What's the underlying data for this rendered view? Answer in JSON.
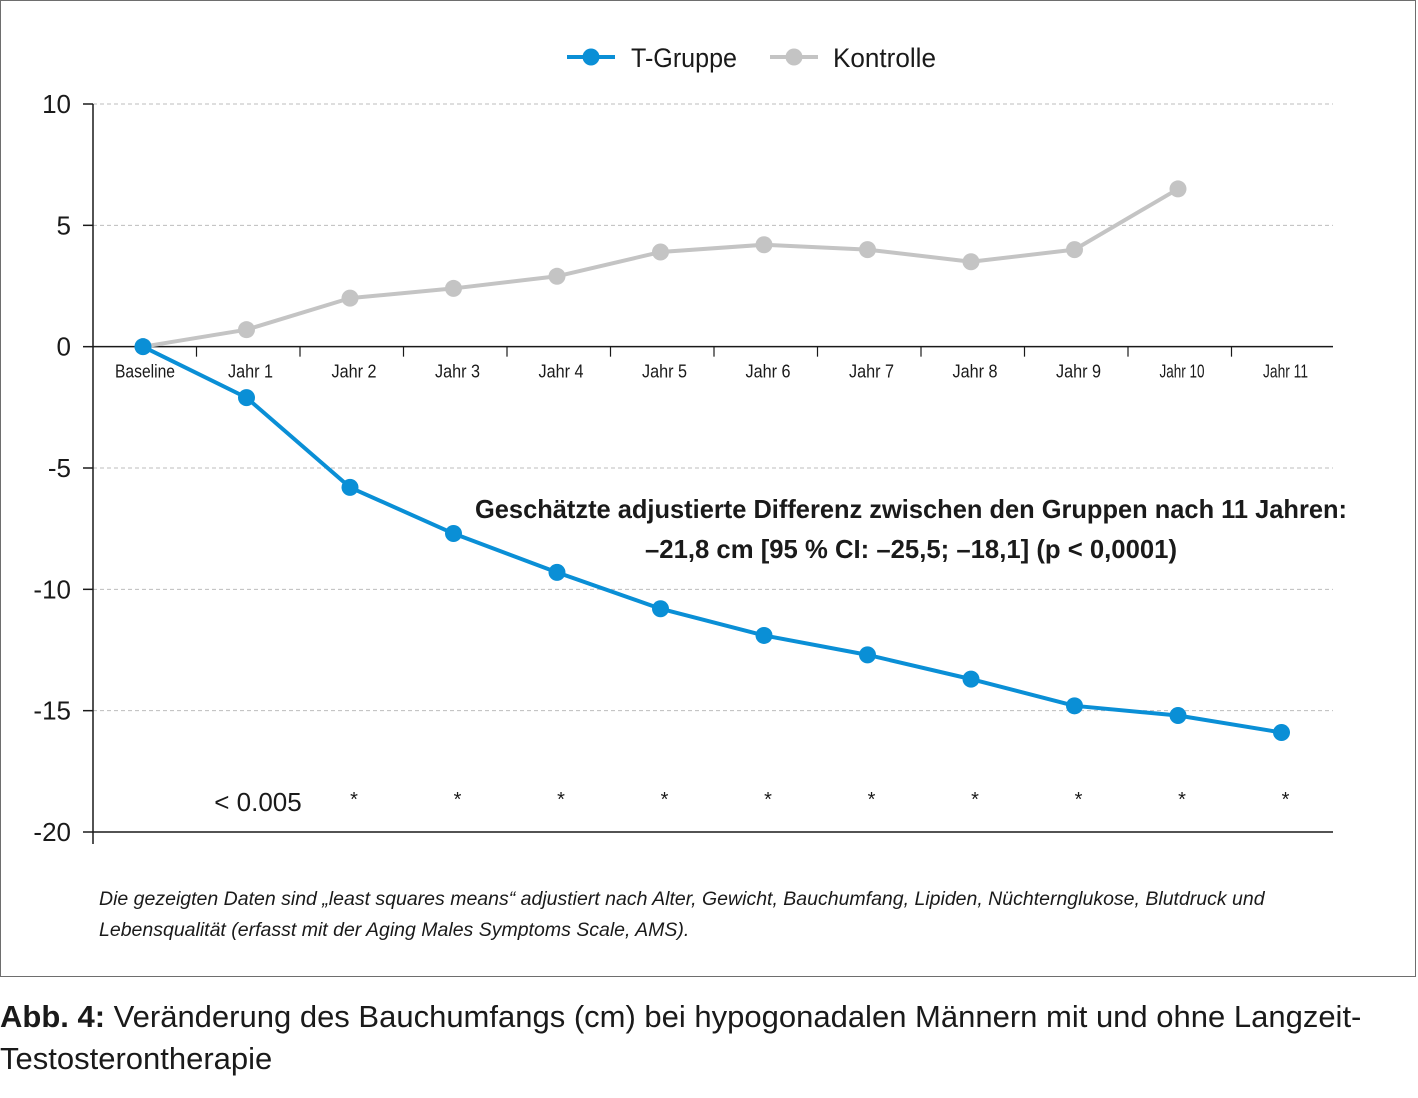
{
  "chart_data": {
    "type": "line",
    "categories": [
      "Baseline",
      "Jahr 1",
      "Jahr 2",
      "Jahr 3",
      "Jahr 4",
      "Jahr 5",
      "Jahr 6",
      "Jahr 7",
      "Jahr 8",
      "Jahr 9",
      "Jahr 10",
      "Jahr 11"
    ],
    "series": [
      {
        "name": "T-Gruppe",
        "color": "#0a8fd6",
        "values": [
          0,
          -2.1,
          -5.8,
          -7.7,
          -9.3,
          -10.8,
          -11.9,
          -12.7,
          -13.7,
          -14.8,
          -15.2,
          -15.9
        ]
      },
      {
        "name": "Kontrolle",
        "color": "#c4c4c4",
        "values": [
          0,
          0.7,
          2.0,
          2.4,
          2.9,
          3.9,
          4.2,
          4.0,
          3.5,
          4.0,
          6.5,
          null
        ]
      }
    ],
    "ylim": [
      -20,
      10
    ],
    "yticks": [
      "10",
      "5",
      "0",
      "-5",
      "-10",
      "-15",
      "-20"
    ],
    "grid": "horizontal dashed",
    "legend": "top-center",
    "annotation": {
      "line1": "Geschätzte adjustierte Differenz zwischen den Gruppen nach 11 Jahren:",
      "line2": "–21,8 cm [95 % CI: –25,5; –18,1] (p < 0,0001)"
    },
    "significance": {
      "first": "< 0.005",
      "marker": "*"
    }
  },
  "footnote": "Die gezeigten Daten sind „least squares means“ adjustiert nach Alter, Gewicht, Bauchumfang, Lipiden, Nüchternglukose, Blutdruck und Lebensqualität (erfasst mit der Aging Males Symptoms Scale, AMS).",
  "caption": {
    "label": "Abb. 4:",
    "text": " Veränderung des Bauchumfangs (cm) bei hypogonadalen Männern mit und ohne Langzeit-Testosterontherapie"
  }
}
